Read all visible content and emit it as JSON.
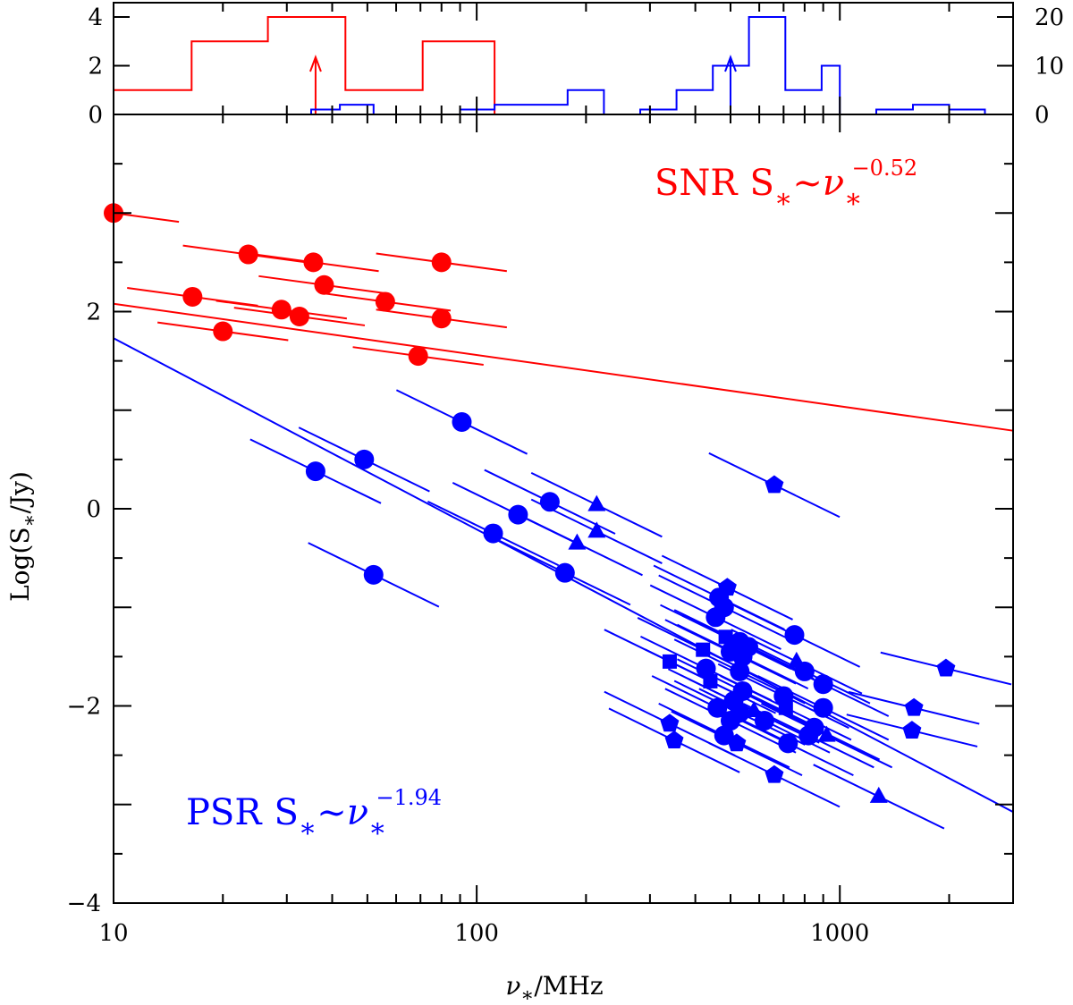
{
  "colors": {
    "snr": "#ff0000",
    "psr": "#0000ff",
    "axis": "#000000"
  },
  "chart_data": [
    {
      "name": "top-histogram",
      "type": "histogram",
      "x_scale": "log",
      "xlim": [
        10,
        3000
      ],
      "left_axis": {
        "ylim": [
          0,
          4
        ],
        "ticks": [
          0,
          2,
          4
        ],
        "tick_labels": [
          "0",
          "2",
          "4"
        ]
      },
      "right_axis": {
        "ylim": [
          0,
          20
        ],
        "ticks": [
          0,
          10,
          20
        ],
        "tick_labels": [
          "0",
          "10",
          "20"
        ]
      },
      "series": [
        {
          "name": "SNR",
          "axis": "left",
          "bin_edges": [
            10,
            16.4,
            26.6,
            43.5,
            71.0,
            112,
            3000
          ],
          "counts": [
            1,
            3,
            4,
            1,
            3,
            0
          ],
          "median_marker": 36
        },
        {
          "name": "PSR",
          "axis": "right",
          "bin_edges": [
            10,
            35,
            42,
            52,
            90,
            112,
            178,
            224,
            282,
            355,
            447,
            562,
            708,
            891,
            1000,
            1260,
            1590,
            2000,
            2510,
            3000
          ],
          "counts": [
            0,
            1,
            2,
            0,
            1,
            2,
            5,
            0,
            1,
            5,
            10,
            20,
            5,
            10,
            0,
            1,
            2,
            1,
            0
          ],
          "median_marker": 500
        }
      ]
    },
    {
      "name": "main-scatter",
      "type": "scatter",
      "x_scale": "log",
      "xlim": [
        10,
        3000
      ],
      "ylim": [
        -4,
        4
      ],
      "xlabel_prefix": "ν",
      "xlabel_sub": "∗",
      "xlabel_suffix": "/MHz",
      "ylabel_prefix": "Log(S",
      "ylabel_sub": "∗",
      "ylabel_suffix": "/Jy)",
      "x_ticks": [
        10,
        100,
        1000
      ],
      "x_tick_labels": [
        "10",
        "100",
        "1000"
      ],
      "y_ticks": [
        -4,
        -2,
        0,
        2
      ],
      "y_tick_labels": [
        "−4",
        "−2",
        "0",
        "2"
      ],
      "fits": [
        {
          "name": "SNR",
          "slope": -0.52,
          "intercept": 2.6
        },
        {
          "name": "PSR",
          "slope": -1.94,
          "intercept": 3.67
        }
      ],
      "series": [
        {
          "name": "SNR",
          "points": [
            {
              "x": 10,
              "y": 3.0,
              "slope": -0.5,
              "marker": "circle"
            },
            {
              "x": 23.5,
              "y": 2.58,
              "slope": -0.5,
              "marker": "circle"
            },
            {
              "x": 35.5,
              "y": 2.5,
              "slope": -0.5,
              "marker": "circle"
            },
            {
              "x": 80,
              "y": 2.5,
              "slope": -0.5,
              "marker": "circle"
            },
            {
              "x": 38,
              "y": 2.27,
              "slope": -0.5,
              "marker": "circle"
            },
            {
              "x": 16.5,
              "y": 2.15,
              "slope": -0.5,
              "marker": "circle"
            },
            {
              "x": 56,
              "y": 2.1,
              "slope": -0.5,
              "marker": "circle"
            },
            {
              "x": 29,
              "y": 2.02,
              "slope": -0.5,
              "marker": "circle"
            },
            {
              "x": 32.5,
              "y": 1.95,
              "slope": -0.5,
              "marker": "circle"
            },
            {
              "x": 80,
              "y": 1.93,
              "slope": -0.5,
              "marker": "circle"
            },
            {
              "x": 20,
              "y": 1.8,
              "slope": -0.5,
              "marker": "circle"
            },
            {
              "x": 69,
              "y": 1.55,
              "slope": -0.5,
              "marker": "circle"
            }
          ]
        },
        {
          "name": "PSR",
          "points": [
            {
              "x": 91,
              "y": 0.88,
              "slope": -1.8,
              "marker": "circle"
            },
            {
              "x": 49,
              "y": 0.5,
              "slope": -1.8,
              "marker": "circle"
            },
            {
              "x": 36,
              "y": 0.38,
              "slope": -1.8,
              "marker": "circle"
            },
            {
              "x": 52,
              "y": -0.67,
              "slope": -1.8,
              "marker": "circle"
            },
            {
              "x": 111,
              "y": -0.25,
              "slope": -1.8,
              "marker": "circle"
            },
            {
              "x": 130,
              "y": -0.06,
              "slope": -1.8,
              "marker": "circle"
            },
            {
              "x": 159,
              "y": 0.07,
              "slope": -1.8,
              "marker": "circle"
            },
            {
              "x": 175,
              "y": -0.65,
              "slope": -1.8,
              "marker": "circle"
            },
            {
              "x": 214,
              "y": 0.04,
              "slope": -1.8,
              "marker": "triangle"
            },
            {
              "x": 214,
              "y": -0.23,
              "slope": -1.8,
              "marker": "triangle"
            },
            {
              "x": 189,
              "y": -0.35,
              "slope": -1.8,
              "marker": "triangle"
            },
            {
              "x": 660,
              "y": 0.24,
              "slope": -1.8,
              "marker": "pentagon"
            },
            {
              "x": 465,
              "y": -0.9,
              "slope": -1.8,
              "marker": "circle"
            },
            {
              "x": 490,
              "y": -0.8,
              "slope": -1.8,
              "marker": "pentagon"
            },
            {
              "x": 480,
              "y": -1.0,
              "slope": -1.8,
              "marker": "circle"
            },
            {
              "x": 455,
              "y": -1.1,
              "slope": -1.8,
              "marker": "circle"
            },
            {
              "x": 485,
              "y": -1.3,
              "slope": -1.8,
              "marker": "square"
            },
            {
              "x": 530,
              "y": -1.35,
              "slope": -1.8,
              "marker": "circle"
            },
            {
              "x": 560,
              "y": -1.4,
              "slope": -1.8,
              "marker": "circle"
            },
            {
              "x": 750,
              "y": -1.28,
              "slope": -1.8,
              "marker": "circle"
            },
            {
              "x": 420,
              "y": -1.43,
              "slope": -1.8,
              "marker": "square"
            },
            {
              "x": 500,
              "y": -1.45,
              "slope": -1.8,
              "marker": "circle"
            },
            {
              "x": 540,
              "y": -1.5,
              "slope": -1.8,
              "marker": "circle"
            },
            {
              "x": 340,
              "y": -1.55,
              "slope": -1.8,
              "marker": "square"
            },
            {
              "x": 428,
              "y": -1.62,
              "slope": -1.8,
              "marker": "circle"
            },
            {
              "x": 530,
              "y": -1.65,
              "slope": -1.8,
              "marker": "circle"
            },
            {
              "x": 800,
              "y": -1.65,
              "slope": -1.8,
              "marker": "circle"
            },
            {
              "x": 760,
              "y": -1.55,
              "slope": -1.8,
              "marker": "triangle"
            },
            {
              "x": 440,
              "y": -1.75,
              "slope": -1.8,
              "marker": "square"
            },
            {
              "x": 900,
              "y": -1.78,
              "slope": -1.8,
              "marker": "circle"
            },
            {
              "x": 540,
              "y": -1.85,
              "slope": -1.8,
              "marker": "circle"
            },
            {
              "x": 700,
              "y": -1.9,
              "slope": -1.8,
              "marker": "circle"
            },
            {
              "x": 510,
              "y": -1.95,
              "slope": -1.8,
              "marker": "circle"
            },
            {
              "x": 460,
              "y": -2.02,
              "slope": -1.8,
              "marker": "circle"
            },
            {
              "x": 710,
              "y": -2.02,
              "slope": -1.8,
              "marker": "square"
            },
            {
              "x": 900,
              "y": -2.02,
              "slope": -1.8,
              "marker": "circle"
            },
            {
              "x": 530,
              "y": -2.07,
              "slope": -1.8,
              "marker": "circle"
            },
            {
              "x": 580,
              "y": -2.05,
              "slope": -1.8,
              "marker": "triangle"
            },
            {
              "x": 500,
              "y": -2.15,
              "slope": -1.8,
              "marker": "circle"
            },
            {
              "x": 620,
              "y": -2.15,
              "slope": -1.8,
              "marker": "circle"
            },
            {
              "x": 850,
              "y": -2.22,
              "slope": -1.8,
              "marker": "circle"
            },
            {
              "x": 480,
              "y": -2.3,
              "slope": -1.8,
              "marker": "circle"
            },
            {
              "x": 720,
              "y": -2.38,
              "slope": -1.8,
              "marker": "circle"
            },
            {
              "x": 820,
              "y": -2.3,
              "slope": -1.8,
              "marker": "circle"
            },
            {
              "x": 520,
              "y": -2.38,
              "slope": -1.8,
              "marker": "pentagon"
            },
            {
              "x": 920,
              "y": -2.3,
              "slope": -1.8,
              "marker": "triangle"
            },
            {
              "x": 340,
              "y": -2.18,
              "slope": -1.8,
              "marker": "pentagon"
            },
            {
              "x": 350,
              "y": -2.35,
              "slope": -1.8,
              "marker": "pentagon"
            },
            {
              "x": 660,
              "y": -2.7,
              "slope": -1.8,
              "marker": "pentagon"
            },
            {
              "x": 1280,
              "y": -2.92,
              "slope": -1.8,
              "marker": "triangle"
            },
            {
              "x": 1600,
              "y": -2.02,
              "slope": -0.9,
              "marker": "pentagon"
            },
            {
              "x": 1580,
              "y": -2.25,
              "slope": -0.9,
              "marker": "pentagon"
            },
            {
              "x": 1960,
              "y": -1.62,
              "slope": -0.9,
              "marker": "pentagon"
            }
          ]
        }
      ],
      "annotations": [
        {
          "series": "SNR",
          "label": "SNR",
          "symbol": "S",
          "sub": "∗",
          "rel": "∼",
          "nu": "ν",
          "nu_sub": "∗",
          "exponent": "−0.52"
        },
        {
          "series": "PSR",
          "label": "PSR",
          "symbol": "S",
          "sub": "∗",
          "rel": "∼",
          "nu": "ν",
          "nu_sub": "∗",
          "exponent": "−1.94"
        }
      ]
    }
  ]
}
